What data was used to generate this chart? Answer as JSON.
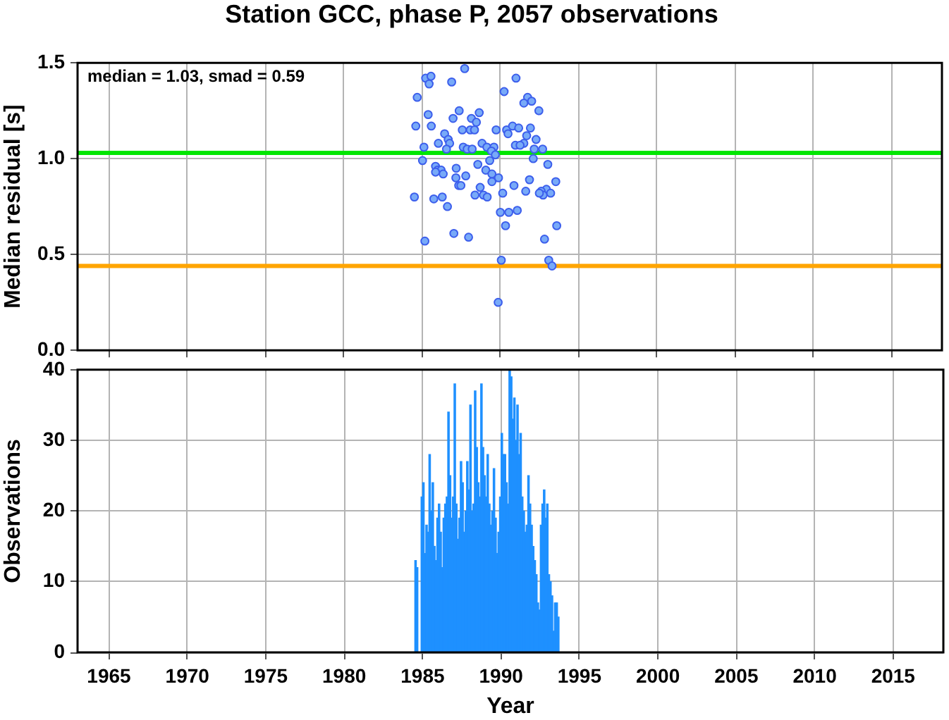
{
  "chart_data": [
    {
      "type": "scatter",
      "title": "Station GCC, phase P, 2057 observations",
      "ylabel": "Median residual [s]",
      "color": "#78aaf8",
      "marker": "circle",
      "grid": true,
      "tick_labels": "y",
      "xlim": [
        1963,
        2018.2
      ],
      "xticks": [
        1965,
        1970,
        1975,
        1980,
        1985,
        1990,
        1995,
        2000,
        2005,
        2010,
        2015
      ],
      "ylim": [
        0,
        1.5
      ],
      "yticks": [
        {
          "value": 0,
          "label": "0.0"
        },
        0.5,
        {
          "value": 1,
          "label": "1.0"
        },
        1.5
      ],
      "ref_lines": [
        {
          "axis": "y",
          "value": 1.03,
          "color": "#00e600"
        },
        {
          "axis": "y",
          "value": 0.44,
          "color": "#ffa500"
        }
      ],
      "annotations": [
        "median = 1.03, smad = 0.59"
      ],
      "x": [
        1987.72,
        1985.23,
        1985.57,
        1985.45,
        1986.89,
        1991.0,
        1990.24,
        1984.69,
        1991.74,
        1992.0,
        1991.5,
        1992.46,
        1985.39,
        1987.37,
        1986.98,
        1988.15,
        1988.65,
        1988.47,
        1984.6,
        1985.59,
        1986.44,
        1987.57,
        1988.08,
        1988.35,
        1989.73,
        1990.4,
        1990.78,
        1991.17,
        1990.49,
        1991.92,
        1991.68,
        1991.5,
        1990.96,
        1991.26,
        1992.28,
        1986.67,
        1986.76,
        1986.04,
        1986.56,
        1985.12,
        1987.63,
        1987.88,
        1988.2,
        1988.83,
        1989.14,
        1989.59,
        1989.43,
        1989.68,
        1992.16,
        1992.7,
        1992.1,
        1985.03,
        1989.32,
        1988.56,
        1993.03,
        1985.86,
        1985.99,
        1986.22,
        1986.35,
        1985.86,
        1987.18,
        1989.07,
        1989.46,
        1989.88,
        1989.46,
        1987.79,
        1987.16,
        1987.34,
        1987.48,
        1991.86,
        1990.87,
        1993.54,
        1992.94,
        1992.61,
        1993.21,
        1992.73,
        1992.49,
        1991.62,
        1990.15,
        1988.71,
        1988.38,
        1988.92,
        1989.16,
        1984.51,
        1985.75,
        1986.29,
        1986.62,
        1990.0,
        1990.54,
        1991.08,
        1990.33,
        1993.6,
        1987.03,
        1987.97,
        1985.18,
        1992.82,
        1990.06,
        1993.09,
        1993.3,
        1989.86
      ],
      "values": [
        1.47,
        1.42,
        1.43,
        1.39,
        1.4,
        1.42,
        1.35,
        1.32,
        1.32,
        1.3,
        1.29,
        1.25,
        1.23,
        1.25,
        1.21,
        1.21,
        1.24,
        1.19,
        1.17,
        1.17,
        1.13,
        1.15,
        1.15,
        1.15,
        1.15,
        1.15,
        1.17,
        1.16,
        1.13,
        1.16,
        1.12,
        1.08,
        1.07,
        1.07,
        1.1,
        1.1,
        1.08,
        1.08,
        1.05,
        1.06,
        1.06,
        1.05,
        1.05,
        1.08,
        1.06,
        1.06,
        1.04,
        1.02,
        1.05,
        1.05,
        1.0,
        0.99,
        0.99,
        0.97,
        0.97,
        0.96,
        0.94,
        0.94,
        0.92,
        0.93,
        0.95,
        0.94,
        0.92,
        0.9,
        0.88,
        0.91,
        0.9,
        0.86,
        0.86,
        0.89,
        0.86,
        0.88,
        0.84,
        0.83,
        0.82,
        0.81,
        0.82,
        0.83,
        0.82,
        0.85,
        0.81,
        0.81,
        0.8,
        0.8,
        0.79,
        0.8,
        0.75,
        0.72,
        0.72,
        0.73,
        0.65,
        0.65,
        0.61,
        0.59,
        0.57,
        0.58,
        0.47,
        0.47,
        0.44,
        0.25
      ]
    },
    {
      "type": "histogram",
      "xlabel": "Year",
      "ylabel": "Observations",
      "color": "#1e90ff",
      "grid": true,
      "xlim": [
        1963,
        2018.2
      ],
      "xticks": [
        1965,
        1970,
        1975,
        1980,
        1985,
        1990,
        1995,
        2000,
        2005,
        2010,
        2015
      ],
      "ylim": [
        0,
        40
      ],
      "yticks": [
        0,
        10,
        20,
        30,
        40
      ],
      "bins": [
        1984.5,
        1984.6,
        1984.7,
        1984.8,
        1984.9,
        1985,
        1985.1,
        1985.2,
        1985.3,
        1985.4,
        1985.5,
        1985.6,
        1985.7,
        1985.8,
        1985.9,
        1986,
        1986.1,
        1986.2,
        1986.3,
        1986.4,
        1986.5,
        1986.6,
        1986.7,
        1986.8,
        1986.9,
        1987,
        1987.1,
        1987.2,
        1987.3,
        1987.4,
        1987.5,
        1987.6,
        1987.7,
        1987.8,
        1987.9,
        1988,
        1988.1,
        1988.2,
        1988.3,
        1988.4,
        1988.5,
        1988.6,
        1988.7,
        1988.8,
        1988.9,
        1989,
        1989.1,
        1989.2,
        1989.3,
        1989.4,
        1989.5,
        1989.6,
        1989.7,
        1989.8,
        1989.9,
        1990,
        1990.1,
        1990.2,
        1990.3,
        1990.4,
        1990.5,
        1990.6,
        1990.7,
        1990.8,
        1990.9,
        1991,
        1991.1,
        1991.2,
        1991.3,
        1991.4,
        1991.5,
        1991.6,
        1991.7,
        1991.8,
        1991.9,
        1992,
        1992.1,
        1992.2,
        1992.3,
        1992.4,
        1992.5,
        1992.6,
        1992.7,
        1992.8,
        1992.9,
        1993,
        1993.1,
        1993.2,
        1993.3,
        1993.4,
        1993.5,
        1993.6,
        1993.7
      ],
      "values": [
        13,
        12,
        0,
        0,
        22,
        24,
        14,
        18,
        17,
        28,
        20,
        24,
        15,
        13,
        19,
        21,
        17,
        12,
        19,
        21,
        22,
        34,
        25,
        19,
        22,
        38,
        21,
        16,
        19,
        27,
        24,
        17,
        20,
        27,
        23,
        35,
        20,
        21,
        37,
        29,
        24,
        22,
        38,
        29,
        25,
        22,
        28,
        21,
        18,
        20,
        26,
        19,
        14,
        17,
        22,
        31,
        28,
        28,
        24,
        21,
        40,
        39,
        33,
        36,
        30,
        35,
        28,
        31,
        22,
        20,
        17,
        18,
        25,
        21,
        18,
        15,
        13,
        11,
        7,
        6,
        18,
        21,
        23,
        19,
        21,
        11,
        10,
        8,
        3,
        7,
        7,
        5
      ]
    }
  ]
}
